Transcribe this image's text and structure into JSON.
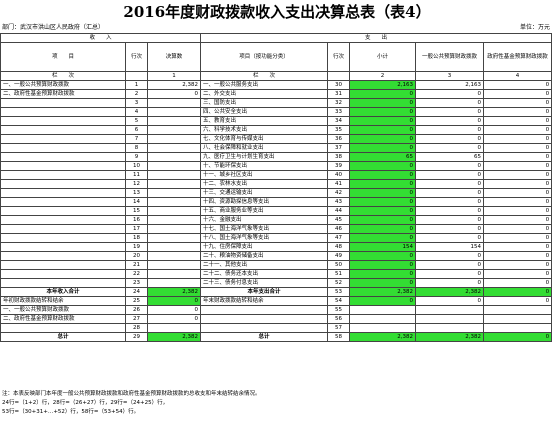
{
  "title": "2016年度财政拨款收入支出决算总表（表4）",
  "org_label": "部门：武汉市洪山区人民政府（汇总）",
  "unit_label": "单位：万元",
  "header": {
    "income": "收　　入",
    "expense": "支　　出",
    "item": "项　　目",
    "seq": "行次",
    "budget": "决算数",
    "item_func": "项目（按功能分类）",
    "subtotal": "小计",
    "general": "一般公共预算财政拨款",
    "fund": "政府性基金预算财政拨款",
    "colspan_label": "栏　　次",
    "n1": "1",
    "n2": "2",
    "n3": "3",
    "n4": "4"
  },
  "rows": [
    {
      "li": "一、一般公共预算财政拨款",
      "ls": "1",
      "lv": "2,382",
      "ri": "一、一般公共服务支出",
      "rs": "30",
      "r2": "2,163",
      "r3": "2,163",
      "r4": "0"
    },
    {
      "li": "二、政府性基金预算财政拨款",
      "ls": "2",
      "lv": "0",
      "ri": "二、外交支出",
      "rs": "31",
      "r2": "0",
      "r3": "0",
      "r4": "0"
    },
    {
      "li": "",
      "ls": "3",
      "lv": "",
      "ri": "三、国防支出",
      "rs": "32",
      "r2": "0",
      "r3": "0",
      "r4": "0"
    },
    {
      "li": "",
      "ls": "4",
      "lv": "",
      "ri": "四、公共安全支出",
      "rs": "33",
      "r2": "0",
      "r3": "0",
      "r4": "0"
    },
    {
      "li": "",
      "ls": "5",
      "lv": "",
      "ri": "五、教育支出",
      "rs": "34",
      "r2": "0",
      "r3": "0",
      "r4": "0"
    },
    {
      "li": "",
      "ls": "6",
      "lv": "",
      "ri": "六、科学技术支出",
      "rs": "35",
      "r2": "0",
      "r3": "0",
      "r4": "0"
    },
    {
      "li": "",
      "ls": "7",
      "lv": "",
      "ri": "七、文化体育与传媒支出",
      "rs": "36",
      "r2": "0",
      "r3": "0",
      "r4": "0"
    },
    {
      "li": "",
      "ls": "8",
      "lv": "",
      "ri": "八、社会保障和就业支出",
      "rs": "37",
      "r2": "0",
      "r3": "0",
      "r4": "0"
    },
    {
      "li": "",
      "ls": "9",
      "lv": "",
      "ri": "九、医疗卫生与计划生育支出",
      "rs": "38",
      "r2": "65",
      "r3": "65",
      "r4": "0"
    },
    {
      "li": "",
      "ls": "10",
      "lv": "",
      "ri": "十、节能环保支出",
      "rs": "39",
      "r2": "0",
      "r3": "0",
      "r4": "0"
    },
    {
      "li": "",
      "ls": "11",
      "lv": "",
      "ri": "十一、城乡社区支出",
      "rs": "40",
      "r2": "0",
      "r3": "0",
      "r4": "0"
    },
    {
      "li": "",
      "ls": "12",
      "lv": "",
      "ri": "十二、农林水支出",
      "rs": "41",
      "r2": "0",
      "r3": "0",
      "r4": "0"
    },
    {
      "li": "",
      "ls": "13",
      "lv": "",
      "ri": "十三、交通运输支出",
      "rs": "42",
      "r2": "0",
      "r3": "0",
      "r4": "0"
    },
    {
      "li": "",
      "ls": "14",
      "lv": "",
      "ri": "十四、资源勘探信息等支出",
      "rs": "43",
      "r2": "0",
      "r3": "0",
      "r4": "0"
    },
    {
      "li": "",
      "ls": "15",
      "lv": "",
      "ri": "十五、商业服务业等支出",
      "rs": "44",
      "r2": "0",
      "r3": "0",
      "r4": "0"
    },
    {
      "li": "",
      "ls": "16",
      "lv": "",
      "ri": "十六、金融支出",
      "rs": "45",
      "r2": "0",
      "r3": "0",
      "r4": "0"
    },
    {
      "li": "",
      "ls": "17",
      "lv": "",
      "ri": "十七、国土海洋气象等支出",
      "rs": "46",
      "r2": "0",
      "r3": "0",
      "r4": "0"
    },
    {
      "li": "",
      "ls": "18",
      "lv": "",
      "ri": "十八、国土海洋气象等支出",
      "rs": "47",
      "r2": "0",
      "r3": "0",
      "r4": "0"
    },
    {
      "li": "",
      "ls": "19",
      "lv": "",
      "ri": "十九、住房保障支出",
      "rs": "48",
      "r2": "154",
      "r3": "154",
      "r4": "0"
    },
    {
      "li": "",
      "ls": "20",
      "lv": "",
      "ri": "二十、粮油物资储备支出",
      "rs": "49",
      "r2": "0",
      "r3": "0",
      "r4": "0"
    },
    {
      "li": "",
      "ls": "21",
      "lv": "",
      "ri": "二十一、其他支出",
      "rs": "50",
      "r2": "0",
      "r3": "0",
      "r4": "0"
    },
    {
      "li": "",
      "ls": "22",
      "lv": "",
      "ri": "二十二、债务还本支出",
      "rs": "51",
      "r2": "0",
      "r3": "0",
      "r4": "0"
    },
    {
      "li": "",
      "ls": "23",
      "lv": "",
      "ri": "二十三、债务付息支出",
      "rs": "52",
      "r2": "0",
      "r3": "0",
      "r4": "0"
    }
  ],
  "income_total": {
    "label": "本年收入合计",
    "seq": "24",
    "val": "2,382"
  },
  "expense_total": {
    "label": "本年支出合计",
    "seq": "53",
    "v2": "2,382",
    "v3": "2,382",
    "v4": "0"
  },
  "carry_in": {
    "label": "年初财政拨款结转和结余",
    "seq": "25",
    "val": "0"
  },
  "carry_out": {
    "label": "年末财政拨款结转和结余",
    "seq": "54",
    "v2": "0",
    "v3": "0",
    "v4": "0"
  },
  "sub_rows": [
    {
      "label": "一、一般公共预算财政拨款",
      "seq": "26",
      "val": "0",
      "rseq": "55"
    },
    {
      "label": "二、政府性基金预算财政拨款",
      "seq": "27",
      "val": "0",
      "rseq": "56"
    },
    {
      "label": "",
      "seq": "28",
      "val": "",
      "rseq": "57"
    }
  ],
  "grand_total": {
    "label": "总计",
    "seq": "29",
    "val": "2,382",
    "rlabel": "总计",
    "rseq": "58",
    "v2": "2,382",
    "v3": "2,382",
    "v4": "0"
  },
  "notes": [
    "注：本表反映部门本年度一般公共预算财政拨款和政府性基金预算财政拨款的总收支和年末结转结余情况。",
    "24行=（1+2）行，28行=（26+27）行，29行=（24+25）行，",
    "53行=（30+31+…+52）行，58行=（53+54）行。"
  ],
  "colors": {
    "highlight": "#33dd33"
  }
}
